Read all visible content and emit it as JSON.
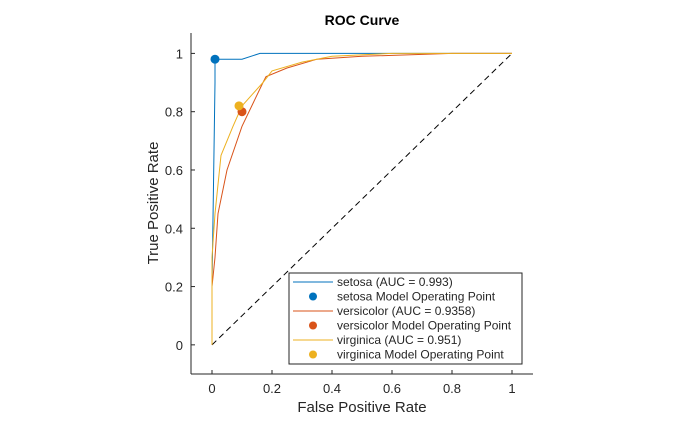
{
  "chart_data": {
    "type": "line",
    "title": "ROC Curve",
    "xlabel": "False Positive Rate",
    "ylabel": "True Positive Rate",
    "xlim": [
      -0.07,
      1.07
    ],
    "ylim": [
      -0.1,
      1.07
    ],
    "xticks": [
      0,
      0.2,
      0.4,
      0.6,
      0.8,
      1
    ],
    "xtick_labels": [
      "0",
      "0.2",
      "0.4",
      "0.6",
      "0.8",
      "1"
    ],
    "yticks": [
      0,
      0.2,
      0.4,
      0.6,
      0.8,
      1
    ],
    "ytick_labels": [
      "0",
      "0.2",
      "0.4",
      "0.6",
      "0.8",
      "1"
    ],
    "grid": false,
    "legend_position": "bottom-right",
    "reference_line": {
      "x": [
        0,
        1
      ],
      "y": [
        0,
        1
      ],
      "style": "dashed",
      "color": "#000000"
    },
    "series": [
      {
        "name": "setosa (AUC = 0.993)",
        "color": "#0072BD",
        "x": [
          0,
          0,
          0.01,
          0.01,
          0.1,
          0.16,
          0.4,
          1
        ],
        "y": [
          0,
          0.2,
          0.9,
          0.98,
          0.98,
          1,
          1,
          1
        ]
      },
      {
        "name": "versicolor (AUC = 0.9358)",
        "color": "#D95319",
        "x": [
          0,
          0,
          0.01,
          0.02,
          0.05,
          0.1,
          0.17,
          0.18,
          0.25,
          0.35,
          0.5,
          0.8,
          1
        ],
        "y": [
          0,
          0.2,
          0.3,
          0.45,
          0.6,
          0.75,
          0.9,
          0.92,
          0.95,
          0.98,
          0.99,
          1,
          1
        ]
      },
      {
        "name": "virginica (AUC = 0.951)",
        "color": "#EDB120",
        "x": [
          0,
          0,
          0.01,
          0.03,
          0.07,
          0.1,
          0.17,
          0.2,
          0.3,
          0.4,
          0.6,
          0.8,
          1
        ],
        "y": [
          0,
          0.3,
          0.45,
          0.65,
          0.75,
          0.82,
          0.9,
          0.94,
          0.97,
          0.99,
          1,
          1,
          1
        ]
      }
    ],
    "operating_points": [
      {
        "name": "setosa Model Operating Point",
        "color": "#0072BD",
        "x": 0.01,
        "y": 0.98
      },
      {
        "name": "versicolor Model Operating Point",
        "color": "#D95319",
        "x": 0.1,
        "y": 0.8
      },
      {
        "name": "virginica Model Operating Point",
        "color": "#EDB120",
        "x": 0.09,
        "y": 0.82
      }
    ],
    "legend": [
      {
        "label": "setosa (AUC = 0.993)",
        "kind": "line",
        "color": "#0072BD"
      },
      {
        "label": "setosa Model Operating Point",
        "kind": "marker",
        "color": "#0072BD"
      },
      {
        "label": "versicolor (AUC = 0.9358)",
        "kind": "line",
        "color": "#D95319"
      },
      {
        "label": "versicolor Model Operating Point",
        "kind": "marker",
        "color": "#D95319"
      },
      {
        "label": "virginica (AUC = 0.951)",
        "kind": "line",
        "color": "#EDB120"
      },
      {
        "label": "virginica Model Operating Point",
        "kind": "marker",
        "color": "#EDB120"
      }
    ]
  }
}
